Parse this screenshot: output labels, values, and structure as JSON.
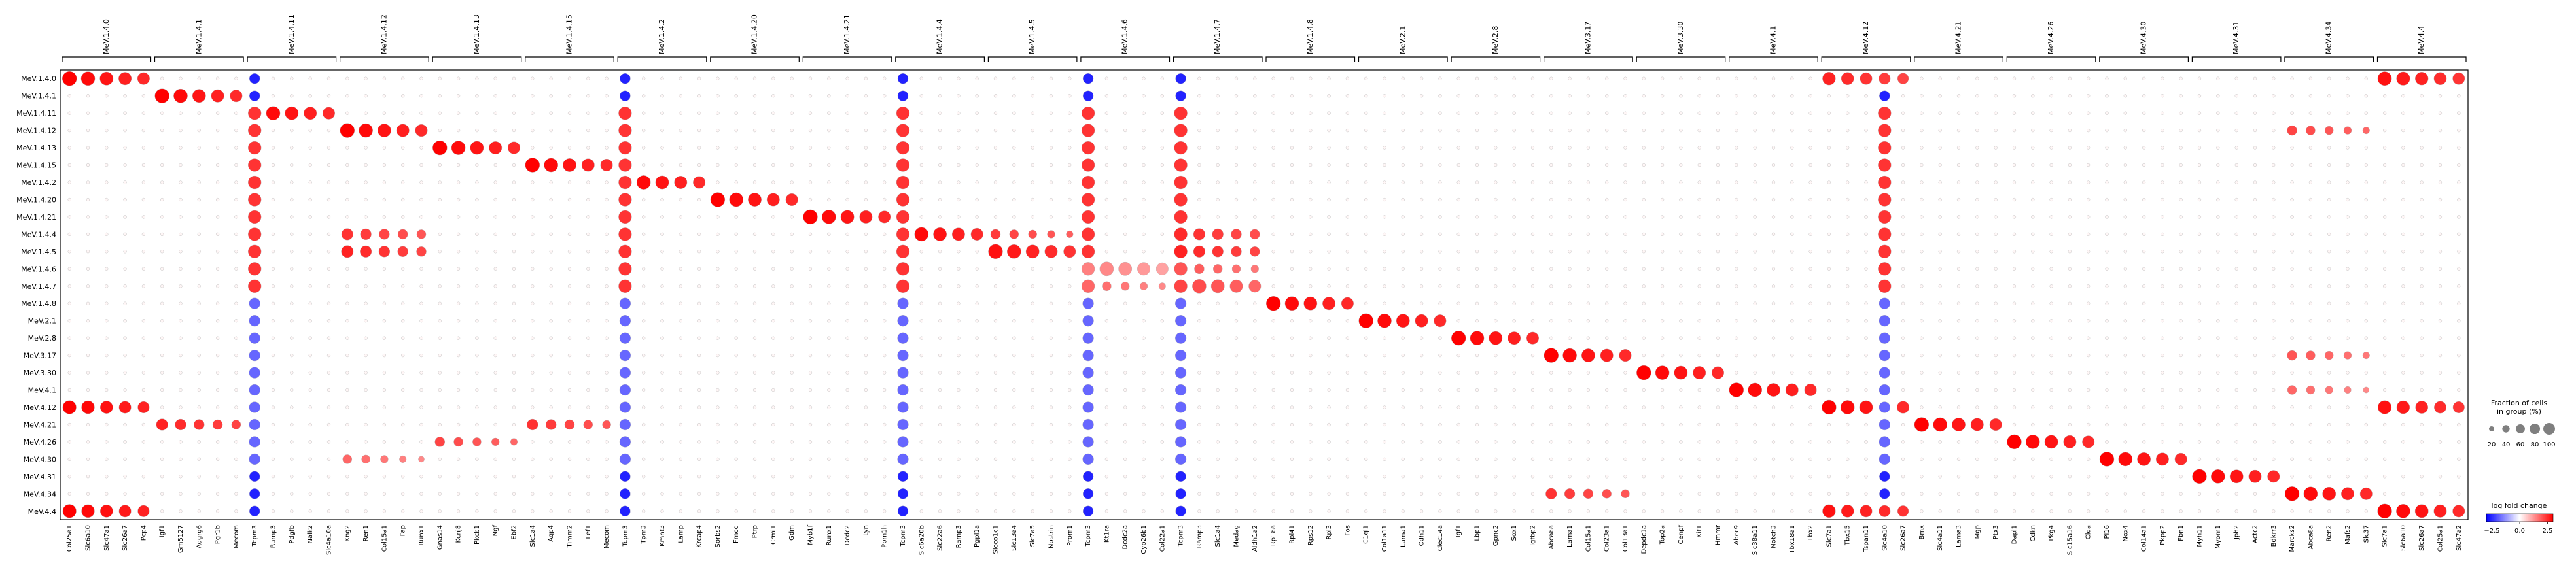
{
  "chart_data": {
    "type": "dotplot",
    "title": "",
    "xlabel": "",
    "ylabel": "",
    "gene_groups": [
      {
        "name": "MeV.1.4.0",
        "genes": [
          "Col25a1",
          "Slc6a10",
          "Slc47a1",
          "Slc26a7",
          "Pcp4"
        ]
      },
      {
        "name": "MeV.1.4.1",
        "genes": [
          "Igf1",
          "Gm5127",
          "Adgrg6",
          "Pgr1b",
          "Mecom"
        ]
      },
      {
        "name": "MeV.1.4.11",
        "genes": [
          "Tcpm3",
          "Ramp3",
          "Pdgfb",
          "Nalk2",
          "Slc4a10a"
        ]
      },
      {
        "name": "MeV.1.4.12",
        "genes": [
          "Kng2",
          "Ren1",
          "Col15a1",
          "Fap",
          "Runx1"
        ]
      },
      {
        "name": "MeV.1.4.13",
        "genes": [
          "Gnas14",
          "Kcnj8",
          "Pkcb1",
          "Ngf",
          "Ebf2"
        ]
      },
      {
        "name": "MeV.1.4.15",
        "genes": [
          "Slc1a4",
          "Aqp4",
          "Timm2",
          "Lef1",
          "Mecom"
        ]
      },
      {
        "name": "MeV.1.4.2",
        "genes": [
          "Tcpm3",
          "Tpm3",
          "Kmnt3",
          "Lamp",
          "Krcap4"
        ]
      },
      {
        "name": "MeV.1.4.20",
        "genes": [
          "Sorbs2",
          "Fmod",
          "Ptrp",
          "Crmi1",
          "Gdm"
        ]
      },
      {
        "name": "MeV.1.4.21",
        "genes": [
          "Myb1f",
          "Runx1",
          "Dcdc2",
          "Lyn",
          "Ppm1h"
        ]
      },
      {
        "name": "MeV.1.4.4",
        "genes": [
          "Tcpm3",
          "Slc6a20b",
          "Slc22a6",
          "Ramp3",
          "Pgpl1a"
        ]
      },
      {
        "name": "MeV.1.4.5",
        "genes": [
          "Slcco1c1",
          "Slc13a4",
          "Slc7a5",
          "Nostrin",
          "Prom1"
        ]
      },
      {
        "name": "MeV.1.4.6",
        "genes": [
          "Tcpm3",
          "Kt1ra",
          "Dcdc2a",
          "Cyp26b1",
          "Col22a1"
        ]
      },
      {
        "name": "MeV.1.4.7",
        "genes": [
          "Tcpm3",
          "Ramp3",
          "Slc1a4",
          "Medag",
          "Aldh1a2"
        ]
      },
      {
        "name": "MeV.1.4.8",
        "genes": [
          "Rp18a",
          "Rpl41",
          "Rps12",
          "Rpl3",
          "Fos"
        ]
      },
      {
        "name": "MeV.2.1",
        "genes": [
          "C1ql1",
          "Col1a11",
          "Lama1",
          "Cdh11",
          "Clec14a"
        ]
      },
      {
        "name": "MeV.2.8",
        "genes": [
          "Igf1",
          "Lbp1",
          "Gpnc2",
          "Sox1",
          "Igfbp2"
        ]
      },
      {
        "name": "MeV.3.17",
        "genes": [
          "Abca8a",
          "Lama1",
          "Col15a1",
          "Col23a1",
          "Col13a1"
        ]
      },
      {
        "name": "MeV.3.30",
        "genes": [
          "Depdc1a",
          "Top2a",
          "Cenpf",
          "Kit1",
          "Hmmr"
        ]
      },
      {
        "name": "MeV.4.1",
        "genes": [
          "Abcc9",
          "Slc38a11",
          "Notch3",
          "Tbx18a1",
          "Tbx2"
        ]
      },
      {
        "name": "MeV.4.12",
        "genes": [
          "Slc7a1",
          "Tbx15",
          "Tspan11",
          "Slc4a10",
          "Slc26a7"
        ]
      },
      {
        "name": "MeV.4.21",
        "genes": [
          "Bmx",
          "Slc4a11",
          "Lama3",
          "Mgp",
          "Ptx3"
        ]
      },
      {
        "name": "MeV.4.26",
        "genes": [
          "Dapl1",
          "Cdkn",
          "Pkg4",
          "Slc15a16",
          "Clqa"
        ]
      },
      {
        "name": "MeV.4.30",
        "genes": [
          "Pl16",
          "Nox4",
          "Col14a1",
          "Pkpp2",
          "Fbn1"
        ]
      },
      {
        "name": "MeV.4.31",
        "genes": [
          "Myh11",
          "Myom1",
          "Jph2",
          "Actc2",
          "Bdkrr3"
        ]
      },
      {
        "name": "MeV.4.34",
        "genes": [
          "Marcks2",
          "Abca8a",
          "Ren2",
          "Mafs2",
          "Slc37"
        ]
      },
      {
        "name": "MeV.4.4",
        "genes": [
          "Slc7a1",
          "Slc6a10",
          "Slc26a7",
          "Col25a1",
          "Slc47a2"
        ]
      }
    ],
    "rows": [
      "MeV.1.4.0",
      "MeV.1.4.1",
      "MeV.1.4.11",
      "MeV.1.4.12",
      "MeV.1.4.13",
      "MeV.1.4.15",
      "MeV.1.4.2",
      "MeV.1.4.20",
      "MeV.1.4.21",
      "MeV.1.4.4",
      "MeV.1.4.5",
      "MeV.1.4.6",
      "MeV.1.4.7",
      "MeV.1.4.8",
      "MeV.2.1",
      "MeV.2.8",
      "MeV.3.17",
      "MeV.3.30",
      "MeV.4.1",
      "MeV.4.12",
      "MeV.4.21",
      "MeV.4.26",
      "MeV.4.30",
      "MeV.4.31",
      "MeV.4.34",
      "MeV.4.4"
    ],
    "marker_fraction_pct": 85,
    "marker_logfc": 3.0,
    "background_fraction_pct": 4,
    "background_logfc": 0.1,
    "extra_dots": [
      {
        "row": 9,
        "col": 12,
        "size": 60,
        "lfc": 2.5
      },
      {
        "row": 9,
        "col": 10,
        "size": 40,
        "lfc": 2.3
      },
      {
        "row": 9,
        "col": 3,
        "size": 55,
        "lfc": 2.4
      },
      {
        "row": 10,
        "col": 3,
        "size": 60,
        "lfc": 2.6
      },
      {
        "row": 10,
        "col": 10,
        "size": 70,
        "lfc": 2.8
      },
      {
        "row": 10,
        "col": 12,
        "size": 60,
        "lfc": 2.6
      },
      {
        "row": 11,
        "col": 12,
        "size": 45,
        "lfc": 2.0
      },
      {
        "row": 12,
        "col": 12,
        "size": 45,
        "lfc": 2.2
      },
      {
        "row": 12,
        "col": 11,
        "size": 40,
        "lfc": 1.8
      },
      {
        "row": 11,
        "col": 11,
        "size": 35,
        "lfc": 1.5
      },
      {
        "row": 19,
        "col": 0,
        "size": 75,
        "lfc": 3.0
      },
      {
        "row": 19,
        "col": 25,
        "size": 75,
        "lfc": 2.8
      },
      {
        "row": 25,
        "col": 0,
        "size": 75,
        "lfc": 3.0
      },
      {
        "row": 25,
        "col": 19,
        "size": 70,
        "lfc": 2.8
      },
      {
        "row": 0,
        "col": 25,
        "size": 80,
        "lfc": 2.8
      },
      {
        "row": 0,
        "col": 19,
        "size": 70,
        "lfc": 2.6
      },
      {
        "row": 20,
        "col": 1,
        "size": 55,
        "lfc": 2.6
      },
      {
        "row": 20,
        "col": 5,
        "size": 50,
        "lfc": 2.4
      },
      {
        "row": 16,
        "col": 24,
        "size": 40,
        "lfc": 2.0
      },
      {
        "row": 24,
        "col": 16,
        "size": 50,
        "lfc": 2.4
      },
      {
        "row": 18,
        "col": 24,
        "size": 35,
        "lfc": 1.8
      },
      {
        "row": 21,
        "col": 4,
        "size": 40,
        "lfc": 2.2
      },
      {
        "row": 22,
        "col": 3,
        "size": 35,
        "lfc": 1.8
      },
      {
        "row": 3,
        "col": 24,
        "size": 40,
        "lfc": 2.2
      }
    ],
    "strong_columns": [
      {
        "gene_index": 10,
        "pattern": "blue_top_red_mid"
      },
      {
        "gene_index": 55,
        "pattern": "blue_top_red_mid"
      },
      {
        "gene_index": 30,
        "pattern": "blue_top_red_mid"
      },
      {
        "gene_index": 45,
        "pattern": "blue_top_red_mid"
      },
      {
        "gene_index": 60,
        "pattern": "blue_top_red_mid"
      },
      {
        "gene_index": 98,
        "pattern": "blue_top_red_mid"
      }
    ],
    "size_legend": {
      "title_lines": [
        "Fraction of cells",
        "in group (%)"
      ],
      "values": [
        20,
        40,
        60,
        80,
        100
      ]
    },
    "color_legend": {
      "title": "log fold change",
      "ticks": [
        -2.5,
        0.0,
        2.5
      ],
      "vmin": -3,
      "vmax": 3
    },
    "colors": {
      "negative": "#0000ff",
      "neutral": "#ffffff",
      "positive": "#ff0000",
      "grid_line": "#d9d9d9",
      "axis": "#000000"
    }
  }
}
